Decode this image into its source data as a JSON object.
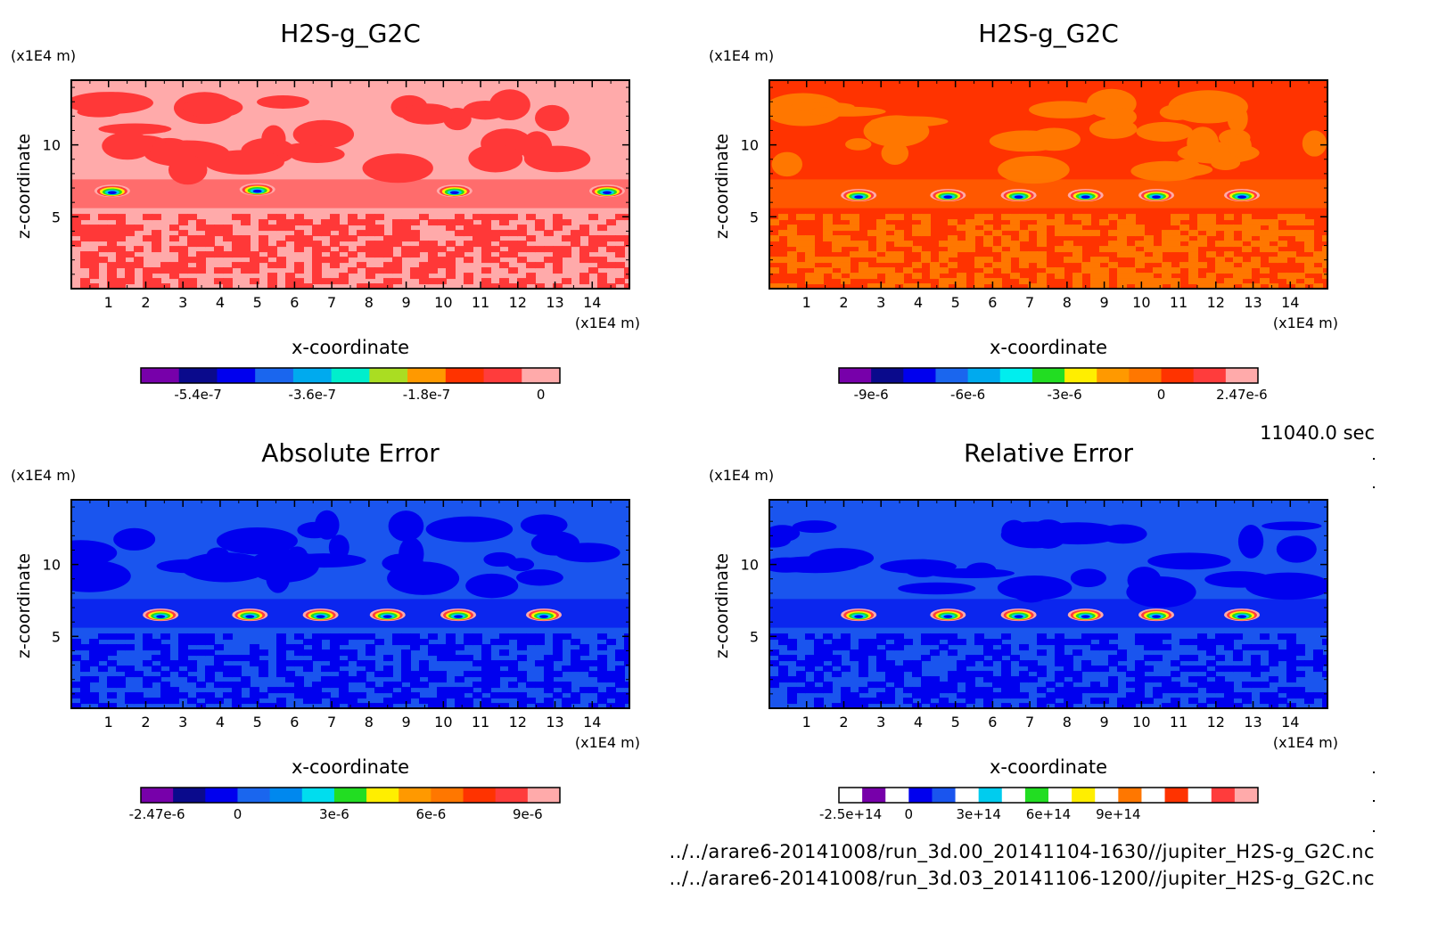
{
  "time_label": "11040.0 sec",
  "footer": {
    "line1": "../../arare6-20141008/run_3d.00_20141104-1630//jupiter_H2S-g_G2C.nc",
    "line2": "../../arare6-20141008/run_3d.03_20141106-1200//jupiter_H2S-g_G2C.nc"
  },
  "chart_data": [
    {
      "type": "heatmap",
      "title": "H2S-g_G2C",
      "xlabel": "x-coordinate",
      "ylabel": "z-coordinate",
      "x_unit": "(x1E4 m)",
      "y_unit": "(x1E4 m)",
      "xlim": [
        0,
        15
      ],
      "ylim": [
        0,
        14.5
      ],
      "x_ticks": [
        "1",
        "2",
        "3",
        "4",
        "5",
        "6",
        "7",
        "8",
        "9",
        "10",
        "11",
        "12",
        "13",
        "14"
      ],
      "y_ticks": [
        "5",
        "10"
      ],
      "background": "#ffaaaa",
      "field": "#ff3838",
      "palette": [
        "#7700aa",
        "#0a0a8c",
        "#0000ee",
        "#1a66ee",
        "#00aaee",
        "#00eecc",
        "#aadd22",
        "#ff9900",
        "#ff3300",
        "#ff3c3c",
        "#ffaaaa"
      ],
      "colorbar_labels": [
        "-5.4e-7",
        "-3.6e-7",
        "-1.8e-7",
        "0"
      ],
      "colorbar_label_positions": [
        1,
        4,
        7,
        10
      ],
      "blobs": [
        [
          1.1,
          6.8
        ],
        [
          5.0,
          6.9
        ],
        [
          10.3,
          6.8
        ],
        [
          14.4,
          6.8
        ]
      ]
    },
    {
      "type": "heatmap",
      "title": "H2S-g_G2C",
      "xlabel": "x-coordinate",
      "ylabel": "z-coordinate",
      "x_unit": "(x1E4 m)",
      "y_unit": "(x1E4 m)",
      "xlim": [
        0,
        15
      ],
      "ylim": [
        0,
        14.5
      ],
      "x_ticks": [
        "1",
        "2",
        "3",
        "4",
        "5",
        "6",
        "7",
        "8",
        "9",
        "10",
        "11",
        "12",
        "13",
        "14"
      ],
      "y_ticks": [
        "5",
        "10"
      ],
      "background": "#ff3300",
      "field": "#ff7700",
      "palette": [
        "#7700aa",
        "#0a0a8c",
        "#0000ee",
        "#1a66ee",
        "#00aaee",
        "#00eeee",
        "#22dd22",
        "#ffee00",
        "#ff9900",
        "#ff7700",
        "#ff3300",
        "#ff3c3c",
        "#ffaaaa"
      ],
      "colorbar_labels": [
        "-9e-6",
        "-6e-6",
        "-3e-6",
        "0",
        "2.47e-6"
      ],
      "colorbar_label_positions": [
        0.5,
        3.5,
        6.5,
        9.5,
        12
      ],
      "blobs": [
        [
          2.4,
          6.5
        ],
        [
          4.8,
          6.5
        ],
        [
          6.7,
          6.5
        ],
        [
          8.5,
          6.5
        ],
        [
          10.4,
          6.5
        ],
        [
          12.7,
          6.5
        ]
      ]
    },
    {
      "type": "heatmap",
      "title": "Absolute Error",
      "xlabel": "x-coordinate",
      "ylabel": "z-coordinate",
      "x_unit": "(x1E4 m)",
      "y_unit": "(x1E4 m)",
      "xlim": [
        0,
        15
      ],
      "ylim": [
        0,
        14.5
      ],
      "x_ticks": [
        "1",
        "2",
        "3",
        "4",
        "5",
        "6",
        "7",
        "8",
        "9",
        "10",
        "11",
        "12",
        "13",
        "14"
      ],
      "y_ticks": [
        "5",
        "10"
      ],
      "background": "#1a55ee",
      "field": "#0000ee",
      "palette": [
        "#7700aa",
        "#0a0a8c",
        "#0000ee",
        "#1a66ee",
        "#0088ee",
        "#00ddee",
        "#22dd22",
        "#ffee00",
        "#ff9900",
        "#ff7700",
        "#ff3300",
        "#ff3c3c",
        "#ffaaaa"
      ],
      "colorbar_labels": [
        "-2.47e-6",
        "0",
        "3e-6",
        "6e-6",
        "9e-6"
      ],
      "colorbar_label_positions": [
        0,
        2.5,
        5.5,
        8.5,
        11.5
      ],
      "blobs": [
        [
          2.4,
          6.5
        ],
        [
          4.8,
          6.5
        ],
        [
          6.7,
          6.5
        ],
        [
          8.5,
          6.5
        ],
        [
          10.4,
          6.5
        ],
        [
          12.7,
          6.5
        ]
      ]
    },
    {
      "type": "heatmap",
      "title": "Relative Error",
      "xlabel": "x-coordinate",
      "ylabel": "z-coordinate",
      "x_unit": "(x1E4 m)",
      "y_unit": "(x1E4 m)",
      "xlim": [
        0,
        15
      ],
      "ylim": [
        0,
        14.5
      ],
      "x_ticks": [
        "1",
        "2",
        "3",
        "4",
        "5",
        "6",
        "7",
        "8",
        "9",
        "10",
        "11",
        "12",
        "13",
        "14"
      ],
      "y_ticks": [
        "5",
        "10"
      ],
      "background": "#1a55ee",
      "field": "#0000ee",
      "palette": [
        "#ffffff",
        "#7700aa",
        "#ffffff",
        "#0000ee",
        "#1a55ee",
        "#ffffff",
        "#00ccee",
        "#ffffff",
        "#22dd22",
        "#ffffff",
        "#ffee00",
        "#ffffff",
        "#ff7700",
        "#ffffff",
        "#ff3300",
        "#ffffff",
        "#ff3c3c",
        "#ffaaaa"
      ],
      "colorbar_labels": [
        "-2.5e+14",
        "0",
        "3e+14",
        "6e+14",
        "9e+14"
      ],
      "colorbar_label_positions": [
        0,
        2.5,
        5.5,
        8.5,
        11.5
      ],
      "blobs": [
        [
          2.4,
          6.5
        ],
        [
          4.8,
          6.5
        ],
        [
          6.7,
          6.5
        ],
        [
          8.5,
          6.5
        ],
        [
          10.4,
          6.5
        ],
        [
          12.7,
          6.5
        ]
      ]
    }
  ]
}
